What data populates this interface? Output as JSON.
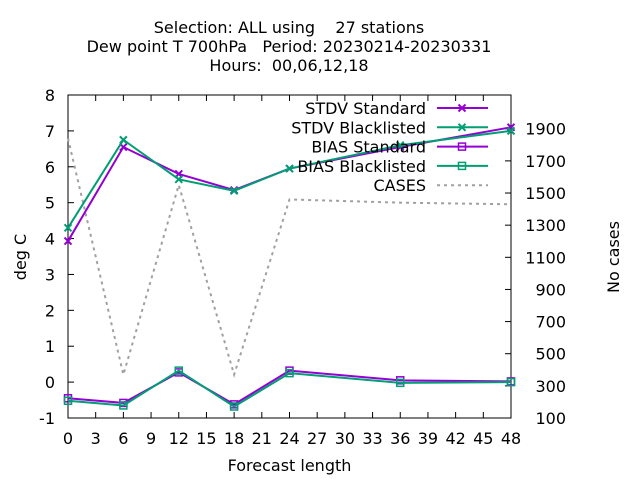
{
  "chart_data": {
    "type": "line",
    "title_lines": [
      "Selection: ALL using    27 stations",
      "Dew point T 700hPa   Period: 20230214-20230331",
      "Hours:  00,06,12,18"
    ],
    "xlabel": "Forecast length",
    "ylabel": "deg C",
    "y2label": "No cases",
    "x_ticks": [
      0,
      3,
      6,
      9,
      12,
      15,
      18,
      21,
      24,
      27,
      30,
      33,
      36,
      39,
      42,
      45,
      48
    ],
    "y_ticks": [
      -1,
      0,
      1,
      2,
      3,
      4,
      5,
      6,
      7,
      8
    ],
    "y2_ticks": [
      100,
      300,
      500,
      700,
      900,
      1100,
      1300,
      1500,
      1700,
      1900
    ],
    "xlim": [
      0,
      48
    ],
    "ylim": [
      -1,
      8
    ],
    "y2lim": [
      100,
      2110
    ],
    "legend_position": "top-right",
    "grid": false,
    "series": [
      {
        "name": "STDV Standard",
        "axis": "y",
        "color": "#9400d3",
        "marker": "x",
        "dash": false,
        "x": [
          0,
          6,
          12,
          18,
          24,
          36,
          48
        ],
        "y": [
          3.93,
          6.55,
          5.8,
          5.35,
          5.95,
          6.55,
          7.1
        ]
      },
      {
        "name": "STDV Blacklisted",
        "axis": "y",
        "color": "#009e73",
        "marker": "x",
        "dash": false,
        "x": [
          0,
          6,
          12,
          18,
          24,
          36,
          48
        ],
        "y": [
          4.3,
          6.75,
          5.65,
          5.33,
          5.95,
          6.6,
          7.0
        ]
      },
      {
        "name": "BIAS Standard",
        "axis": "y",
        "color": "#9400d3",
        "marker": "square",
        "dash": false,
        "x": [
          0,
          6,
          12,
          18,
          24,
          36,
          48
        ],
        "y": [
          -0.45,
          -0.58,
          0.27,
          -0.62,
          0.32,
          0.05,
          0.02
        ]
      },
      {
        "name": "BIAS Blacklisted",
        "axis": "y",
        "color": "#009e73",
        "marker": "square",
        "dash": false,
        "x": [
          0,
          6,
          12,
          18,
          24,
          36,
          48
        ],
        "y": [
          -0.52,
          -0.65,
          0.32,
          -0.68,
          0.25,
          -0.02,
          0.0
        ]
      },
      {
        "name": "CASES",
        "axis": "y2",
        "color": "#a0a0a0",
        "marker": "none",
        "dash": true,
        "x": [
          0,
          6,
          12,
          18,
          24,
          36,
          48
        ],
        "y": [
          1840,
          370,
          1550,
          370,
          1460,
          1440,
          1430
        ]
      }
    ]
  }
}
